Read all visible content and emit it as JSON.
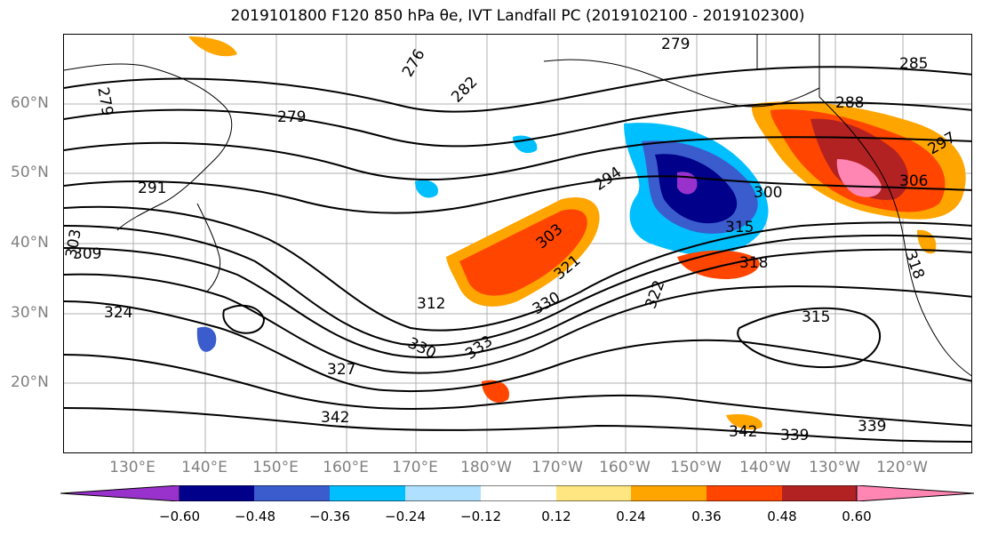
{
  "title": "2019101800 F120 850 hPa θe, IVT Landfall PC (2019102100 - 2019102300)",
  "map": {
    "lat_labels": [
      "60°N",
      "50°N",
      "40°N",
      "30°N",
      "20°N"
    ],
    "lon_labels": [
      "130°E",
      "140°E",
      "150°E",
      "160°E",
      "170°E",
      "180°W",
      "170°W",
      "160°W",
      "150°W",
      "140°W",
      "130°W",
      "120°W"
    ],
    "contour_labels": [
      "279",
      "276",
      "282",
      "279",
      "291",
      "294",
      "303",
      "321",
      "312",
      "330",
      "330",
      "333",
      "327",
      "342",
      "300",
      "315",
      "306",
      "297",
      "288",
      "285",
      "279",
      "318",
      "322",
      "315",
      "318",
      "342",
      "339",
      "339",
      "309",
      "303",
      "324"
    ]
  },
  "colorbar": {
    "ticks": [
      "−0.60",
      "−0.48",
      "−0.36",
      "−0.24",
      "−0.12",
      "0.12",
      "0.24",
      "0.36",
      "0.48",
      "0.60"
    ],
    "colors": [
      "#9932CC",
      "#00008B",
      "#3A5CCC",
      "#00BFFF",
      "#B0E0FF",
      "#FFFFFF",
      "#FFE680",
      "#FFA500",
      "#FF4500",
      "#B22222",
      "#FF85B3"
    ]
  }
}
